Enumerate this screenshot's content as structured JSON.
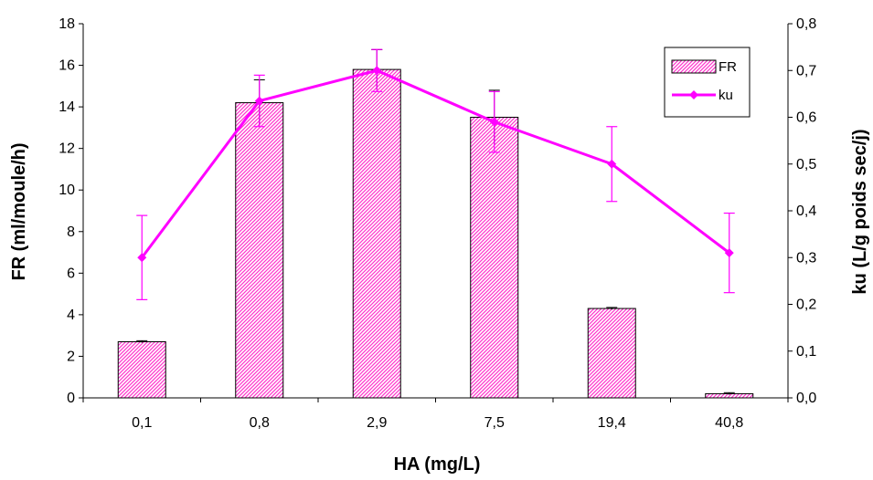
{
  "chart_data": {
    "type": "bar",
    "categories": [
      "0,1",
      "0,8",
      "2,9",
      "7,5",
      "19,4",
      "40,8"
    ],
    "xlabel": "HA (mg/L)",
    "ylabel": "FR (ml/moule/h)",
    "y2label": "ku (L/g poids sec/j)",
    "ylim": [
      0,
      18
    ],
    "y2lim": [
      0,
      0.8
    ],
    "y_ticks": [
      "0",
      "2",
      "4",
      "6",
      "8",
      "10",
      "12",
      "14",
      "16",
      "18"
    ],
    "y2_ticks": [
      "0,0",
      "0,1",
      "0,2",
      "0,3",
      "0,4",
      "0,5",
      "0,6",
      "0,7",
      "0,8"
    ],
    "grid": false,
    "legend_position": "top-right",
    "series": [
      {
        "name": "FR",
        "type": "bar",
        "axis": "left",
        "values": [
          2.7,
          14.2,
          15.8,
          13.5,
          4.3,
          0.2
        ],
        "error": [
          0.05,
          1.1,
          0.95,
          1.3,
          0.05,
          0.05
        ],
        "color": "#ff33cc"
      },
      {
        "name": "ku",
        "type": "line",
        "axis": "right",
        "marker": "diamond",
        "values": [
          0.3,
          0.635,
          0.7,
          0.59,
          0.5,
          0.31
        ],
        "error": [
          0.09,
          0.055,
          0.045,
          0.065,
          0.08,
          0.085
        ],
        "color": "#ff00ff"
      }
    ]
  }
}
